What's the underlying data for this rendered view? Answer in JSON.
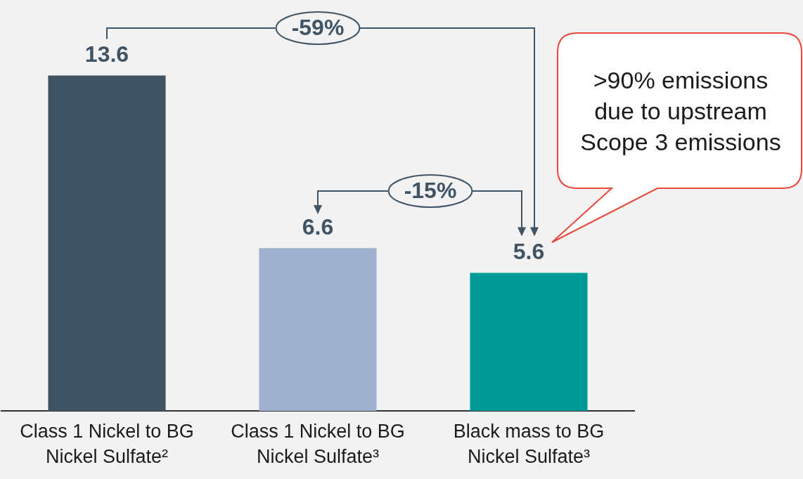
{
  "chart_data": {
    "type": "bar",
    "categories": [
      "Class 1 Nickel to BG Nickel Sulfate²",
      "Class 1 Nickel to BG Nickel Sulfate³",
      "Black mass to BG Nickel Sulfate³"
    ],
    "values": [
      13.6,
      6.6,
      5.6
    ],
    "colors": [
      "#415464",
      "#9fb1cf",
      "#009b94"
    ],
    "data_labels": true,
    "annotations": [
      "-59%",
      "-15%",
      ">90% emissions due to upstream Scope 3 emissions"
    ]
  }
}
